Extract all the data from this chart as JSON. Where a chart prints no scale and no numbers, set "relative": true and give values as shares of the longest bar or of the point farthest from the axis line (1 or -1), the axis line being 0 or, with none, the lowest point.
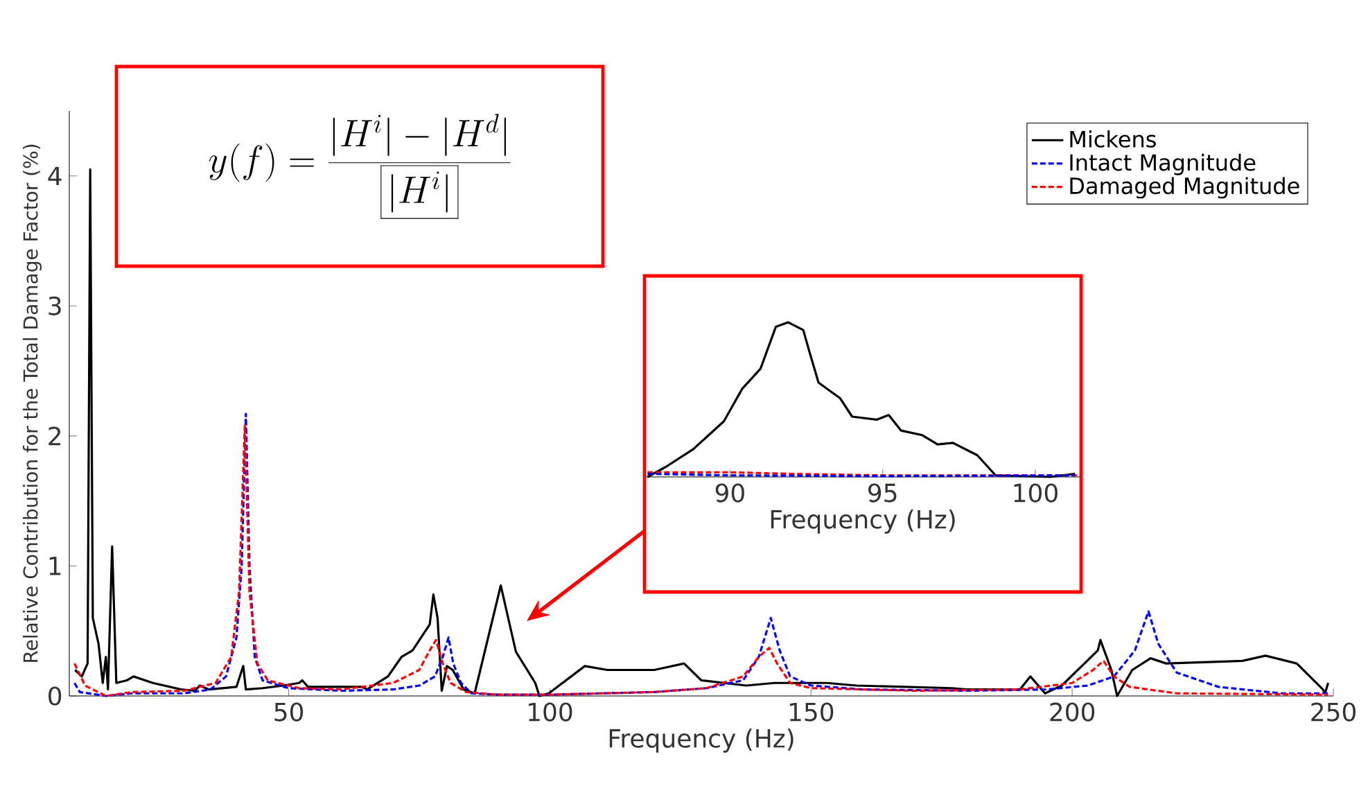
{
  "chart_data": [
    {
      "type": "line",
      "xlabel": "Frequency (Hz)",
      "ylabel": "Relative Contribution for the Total Damage Factor (%)",
      "xlim": [
        8,
        250
      ],
      "ylim": [
        0,
        4.5
      ],
      "xticks": [
        50,
        100,
        150,
        200,
        250
      ],
      "yticks": [
        0,
        1,
        2,
        3,
        4
      ],
      "legend": "top right",
      "annotations": [
        "y(f) = \\frac{|H^{i}| - |H^{d}|}{\\fbox{$|H^{i}|$}}"
      ],
      "series": [
        {
          "name": "Mickens",
          "color": "#000000",
          "line_style": "solid",
          "x": [
            9.1,
            10.4,
            11.5,
            12,
            12.5,
            13.6,
            14.4,
            15,
            15.4,
            16.2,
            17,
            19,
            20.3,
            24,
            29.4,
            32,
            33,
            34.7,
            40,
            41.3,
            41.8,
            45,
            49,
            52,
            52.6,
            53.7,
            64,
            65,
            69,
            71.6,
            73.7,
            77,
            77.7,
            78.5,
            79.3,
            80.3,
            81.4,
            83.5,
            85.6,
            90.6,
            93.5,
            97.2,
            98,
            99.8,
            106.7,
            111,
            120,
            125.7,
            129,
            137.6,
            143,
            153,
            158.7,
            177,
            179.8,
            190,
            192,
            194.8,
            198,
            204.9,
            205.4,
            207.5,
            208.6,
            211.5,
            215,
            218,
            232.6,
            237,
            243,
            248,
            248.4,
            249
          ],
          "values": [
            0.2,
            0.15,
            0.25,
            4.05,
            0.6,
            0.4,
            0.1,
            0.3,
            0.05,
            1.15,
            0.1,
            0.12,
            0.15,
            0.1,
            0.05,
            0.04,
            0.08,
            0.05,
            0.07,
            0.23,
            0.05,
            0.06,
            0.08,
            0.1,
            0.12,
            0.07,
            0.07,
            0.05,
            0.15,
            0.3,
            0.35,
            0.55,
            0.78,
            0.6,
            0.04,
            0.23,
            0.2,
            0.05,
            0.02,
            0.85,
            0.34,
            0.1,
            0.0,
            0.02,
            0.23,
            0.2,
            0.2,
            0.25,
            0.12,
            0.08,
            0.1,
            0.1,
            0.08,
            0.06,
            0.05,
            0.05,
            0.15,
            0.02,
            0.08,
            0.35,
            0.43,
            0.2,
            0.0,
            0.2,
            0.29,
            0.25,
            0.27,
            0.31,
            0.25,
            0.05,
            0.02,
            0.1
          ]
        },
        {
          "name": "Intact Magnitude",
          "color": "#0000ff",
          "line_style": "dashed",
          "x": [
            9,
            10,
            15,
            20,
            30,
            35,
            38,
            40,
            41,
            41.8,
            42.5,
            43.5,
            45,
            50,
            60,
            70,
            75,
            78,
            79.5,
            80.6,
            81.5,
            83,
            85,
            90,
            100,
            120,
            130,
            137,
            140,
            142.3,
            144,
            146,
            150,
            160,
            180,
            195,
            203,
            208,
            212,
            214.6,
            216.5,
            220,
            228,
            240,
            249
          ],
          "values": [
            0.1,
            0.03,
            0.0,
            0.02,
            0.02,
            0.05,
            0.15,
            0.45,
            1.0,
            2.17,
            1.0,
            0.3,
            0.12,
            0.06,
            0.04,
            0.05,
            0.08,
            0.15,
            0.3,
            0.45,
            0.25,
            0.1,
            0.02,
            0.01,
            0.01,
            0.03,
            0.06,
            0.12,
            0.3,
            0.6,
            0.35,
            0.15,
            0.08,
            0.05,
            0.04,
            0.05,
            0.08,
            0.15,
            0.35,
            0.65,
            0.4,
            0.18,
            0.07,
            0.02,
            0.02
          ]
        },
        {
          "name": "Damaged Magnitude",
          "color": "#ff0000",
          "line_style": "dashed",
          "x": [
            9,
            11,
            15,
            20,
            30,
            36,
            39,
            40.5,
            41.6,
            42.5,
            44,
            46,
            52,
            60,
            70,
            75,
            77,
            78.2,
            79.5,
            81,
            84,
            90,
            100,
            120,
            130,
            137,
            140,
            142,
            143.5,
            146,
            150,
            170,
            190,
            200,
            204,
            206,
            208,
            211,
            220,
            249
          ],
          "values": [
            0.25,
            0.08,
            0.0,
            0.03,
            0.04,
            0.1,
            0.3,
            0.8,
            2.08,
            0.8,
            0.25,
            0.12,
            0.06,
            0.05,
            0.1,
            0.2,
            0.35,
            0.43,
            0.25,
            0.1,
            0.03,
            0.01,
            0.01,
            0.03,
            0.06,
            0.15,
            0.3,
            0.37,
            0.25,
            0.1,
            0.06,
            0.04,
            0.05,
            0.1,
            0.2,
            0.27,
            0.15,
            0.07,
            0.02,
            0.01
          ]
        }
      ]
    },
    {
      "type": "line",
      "xlabel": "Frequency (Hz)",
      "xlim": [
        87.2,
        101.5
      ],
      "xticks": [
        90,
        95,
        100
      ],
      "relative": true,
      "tick_labels": "x",
      "series": [
        {
          "color": "#000000",
          "line_style": "solid",
          "x": [
            87.3,
            87.9,
            88.8,
            89.8,
            90.4,
            91.0,
            91.5,
            91.9,
            92.4,
            92.6,
            92.9,
            93.6,
            94.0,
            94.8,
            95.2,
            95.6,
            96.3,
            96.8,
            97.3,
            98.1,
            98.7,
            100.5,
            101.3
          ],
          "values": [
            0,
            0.065,
            0.18,
            0.36,
            0.57,
            0.7,
            0.97,
            1,
            0.95,
            0.81,
            0.61,
            0.51,
            0.39,
            0.37,
            0.4,
            0.3,
            0.27,
            0.21,
            0.22,
            0.14,
            0.01,
            0,
            0.02
          ]
        },
        {
          "color": "#ff0000",
          "line_style": "dashed",
          "x": [
            87.3,
            90,
            92,
            95,
            101.4
          ],
          "values": [
            0.03,
            0.03,
            0.02,
            0.01,
            0.01
          ]
        },
        {
          "color": "#0000ff",
          "line_style": "dashed",
          "x": [
            87.3,
            90,
            95,
            101.3
          ],
          "values": [
            0.02,
            0.01,
            0.005,
            0.01
          ]
        }
      ]
    }
  ]
}
